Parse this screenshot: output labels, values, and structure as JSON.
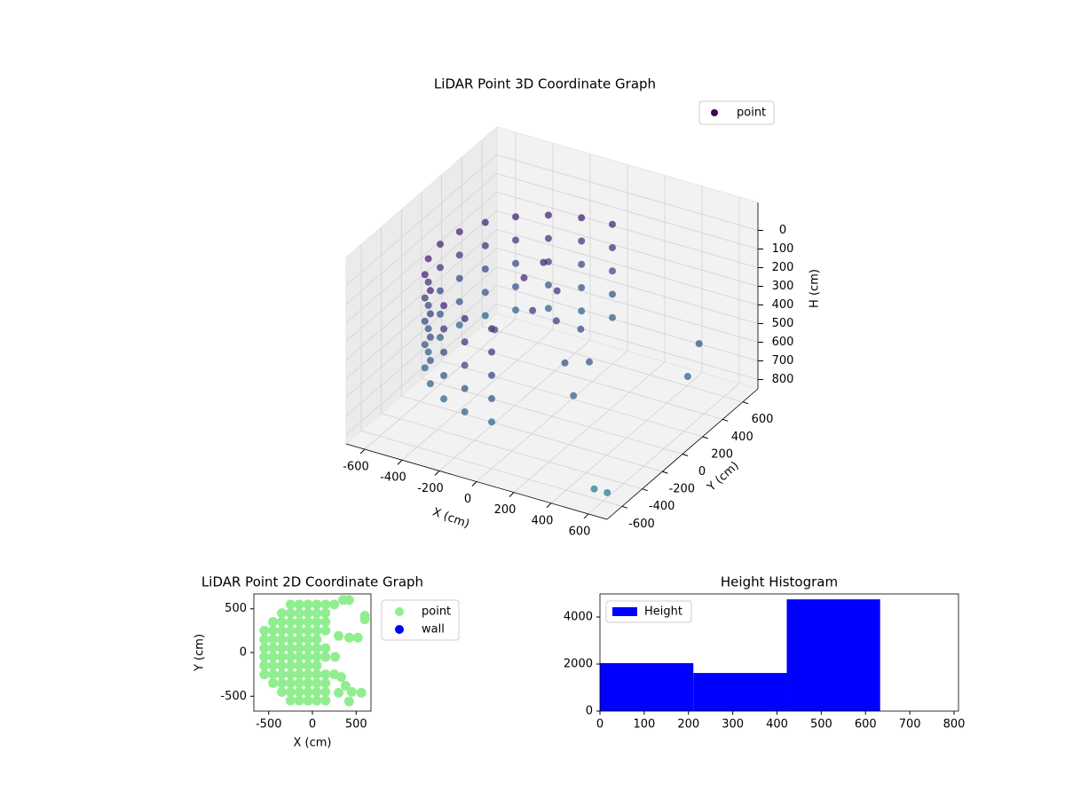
{
  "chart_data": [
    {
      "type": "scatter3d",
      "title": "LiDAR Point 3D Coordinate Graph",
      "x_label": "X (cm)",
      "y_label": "Y (cm)",
      "z_label": "H (cm)",
      "xlim": [
        -700,
        700
      ],
      "ylim": [
        -750,
        750
      ],
      "zlim": [
        850,
        -150
      ],
      "xticks": [
        -600,
        -400,
        -200,
        0,
        200,
        400,
        600
      ],
      "yticks": [
        -600,
        -400,
        -200,
        0,
        200,
        400,
        600
      ],
      "zticks": [
        0,
        100,
        200,
        300,
        400,
        500,
        600,
        700,
        800
      ],
      "colormap": "viridis",
      "legend": "upper right",
      "series": [
        {
          "name": "point",
          "color": "#440154",
          "x": [
            0,
            0,
            0,
            0,
            0,
            -155,
            -155,
            -155,
            -155,
            -155,
            -300,
            -300,
            -300,
            -300,
            -300,
            -424,
            -424,
            -424,
            -424,
            -424,
            -520,
            -520,
            -520,
            -520,
            -520,
            -580,
            -580,
            -580,
            -580,
            -580,
            -600,
            -600,
            -600,
            -600,
            -600,
            -580,
            -580,
            -580,
            -580,
            -580,
            -520,
            -520,
            -520,
            -520,
            -520,
            -424,
            -424,
            -424,
            -424,
            -424,
            -300,
            -300,
            -300,
            -300,
            -300,
            -155,
            -155,
            -155,
            -155,
            -155,
            0,
            0,
            0,
            0,
            0,
            -100,
            -150,
            0,
            -50,
            50,
            -200,
            100,
            150,
            200,
            250,
            600,
            620,
            550,
            620
          ],
          "y": [
            600,
            600,
            600,
            600,
            600,
            580,
            580,
            580,
            580,
            580,
            520,
            520,
            520,
            520,
            520,
            424,
            424,
            424,
            424,
            424,
            300,
            300,
            300,
            300,
            300,
            155,
            155,
            155,
            155,
            155,
            0,
            0,
            0,
            0,
            0,
            -155,
            -155,
            -155,
            -155,
            -155,
            -300,
            -300,
            -300,
            -300,
            -300,
            -424,
            -424,
            -424,
            -424,
            -424,
            -520,
            -520,
            -520,
            -520,
            -520,
            -580,
            -580,
            -580,
            -580,
            -580,
            -600,
            -600,
            -600,
            -600,
            -600,
            100,
            0,
            50,
            -100,
            -50,
            -200,
            100,
            -150,
            0,
            -250,
            350,
            200,
            -600,
            -600
          ],
          "z": [
            100,
            225,
            350,
            475,
            600,
            100,
            225,
            350,
            475,
            600,
            100,
            225,
            350,
            475,
            600,
            100,
            225,
            350,
            475,
            600,
            100,
            225,
            350,
            475,
            600,
            100,
            225,
            350,
            475,
            600,
            100,
            225,
            350,
            475,
            600,
            100,
            225,
            350,
            475,
            600,
            100,
            225,
            350,
            475,
            600,
            100,
            225,
            350,
            475,
            600,
            100,
            225,
            350,
            475,
            600,
            100,
            225,
            350,
            475,
            600,
            100,
            225,
            350,
            475,
            600,
            100,
            150,
            200,
            250,
            300,
            350,
            400,
            450,
            500,
            550,
            450,
            550,
            800,
            800
          ]
        }
      ]
    },
    {
      "type": "scatter",
      "title": "LiDAR Point 2D Coordinate Graph",
      "x_label": "X (cm)",
      "y_label": "Y (cm)",
      "xlim": [
        -670,
        670
      ],
      "ylim": [
        -670,
        670
      ],
      "xticks": [
        -500,
        0,
        500
      ],
      "yticks": [
        -500,
        0,
        500
      ],
      "legend": "outside right",
      "series": [
        {
          "name": "point",
          "color": "#90ee90",
          "x": [
            -550,
            -550,
            -550,
            -550,
            -550,
            -550,
            -450,
            -450,
            -450,
            -450,
            -450,
            -450,
            -450,
            -450,
            -350,
            -350,
            -350,
            -350,
            -350,
            -350,
            -350,
            -350,
            -350,
            -350,
            -250,
            -250,
            -250,
            -250,
            -250,
            -250,
            -250,
            -250,
            -250,
            -250,
            -250,
            -250,
            -150,
            -150,
            -150,
            -150,
            -150,
            -150,
            -150,
            -150,
            -150,
            -150,
            -150,
            -150,
            -50,
            -50,
            -50,
            -50,
            -50,
            -50,
            -50,
            -50,
            -50,
            -50,
            -50,
            -50,
            50,
            50,
            50,
            50,
            50,
            50,
            50,
            50,
            50,
            50,
            50,
            50,
            150,
            150,
            150,
            150,
            150,
            150,
            150,
            150,
            150,
            150,
            250,
            350,
            420,
            600,
            600,
            520,
            420,
            300,
            260,
            250,
            330,
            380,
            450,
            560,
            420,
            300
          ],
          "y": [
            -250,
            -150,
            -50,
            50,
            150,
            250,
            -350,
            -250,
            -150,
            -50,
            50,
            150,
            250,
            350,
            -450,
            -350,
            -250,
            -150,
            -50,
            50,
            150,
            250,
            350,
            450,
            -550,
            -450,
            -350,
            -250,
            -150,
            -50,
            50,
            150,
            250,
            350,
            450,
            550,
            -550,
            -450,
            -350,
            -250,
            -150,
            -50,
            50,
            150,
            250,
            350,
            450,
            550,
            -550,
            -450,
            -350,
            -250,
            -150,
            -50,
            50,
            150,
            250,
            350,
            450,
            550,
            -550,
            -450,
            -350,
            -250,
            -150,
            -50,
            50,
            150,
            250,
            350,
            450,
            550,
            -550,
            -450,
            -350,
            -250,
            -50,
            50,
            250,
            350,
            450,
            550,
            550,
            600,
            600,
            420,
            380,
            170,
            170,
            190,
            -50,
            -250,
            -280,
            -380,
            -450,
            -460,
            -560,
            -460
          ]
        },
        {
          "name": "wall",
          "color": "#0000ff",
          "x": [],
          "y": []
        }
      ]
    },
    {
      "type": "histogram",
      "title": "Height Histogram",
      "bins": [
        0,
        211,
        422,
        633,
        844
      ],
      "xlim": [
        0,
        810
      ],
      "ylim": [
        0,
        4980
      ],
      "xticks": [
        0,
        100,
        200,
        300,
        400,
        500,
        600,
        700,
        800
      ],
      "yticks": [
        0,
        2000,
        4000
      ],
      "legend": "upper left",
      "series": [
        {
          "name": "Height",
          "color": "#0000ff",
          "values": [
            2040,
            1620,
            4750,
            0
          ]
        }
      ]
    }
  ]
}
